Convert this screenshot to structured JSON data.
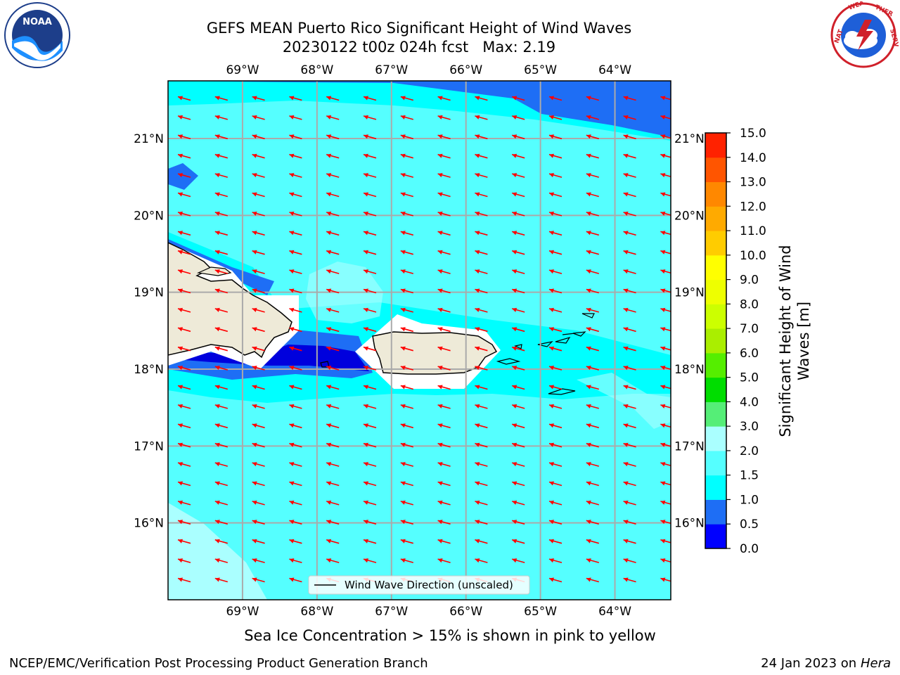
{
  "header": {
    "title_line1": "GEFS MEAN Puerto Rico Significant Height of Wind Waves",
    "title_line2": "20230122 t00z 024h fcst   Max: 2.19"
  },
  "logos": {
    "left": {
      "name": "noaa-logo",
      "text": "NOAA",
      "ring_text": "NATIONAL OCEANIC AND ATMOSPHERIC ADMINISTRATION · U.S. DEPARTMENT OF COMMERCE"
    },
    "right": {
      "name": "nws-logo",
      "ring_text": "NATIONAL WEATHER SERVICE"
    }
  },
  "map": {
    "lon_labels": [
      "69°W",
      "68°W",
      "67°W",
      "66°W",
      "65°W",
      "64°W"
    ],
    "lat_labels": [
      "21°N",
      "20°N",
      "19°N",
      "18°N",
      "17°N",
      "16°N"
    ],
    "lon_range": [
      -70.0,
      -63.25
    ],
    "lat_range": [
      15.0,
      21.75
    ],
    "grid": true,
    "legend_label": "Wind Wave Direction (unscaled)",
    "arrow_color": "#ff0000"
  },
  "colorbar": {
    "label": "Significant Height of Wind Waves [m]",
    "ticks": [
      "0.0",
      "0.5",
      "1.0",
      "1.5",
      "2.0",
      "3.0",
      "4.0",
      "5.0",
      "6.0",
      "7.0",
      "8.0",
      "9.0",
      "10.0",
      "11.0",
      "12.0",
      "13.0",
      "14.0",
      "15.0"
    ],
    "colors": [
      "#0000ff",
      "#1e6ef5",
      "#00ffff",
      "#55ffff",
      "#aaffff",
      "#55ee77",
      "#00dd00",
      "#55ee00",
      "#aaee00",
      "#ccff00",
      "#eeff00",
      "#ffff00",
      "#ffcc00",
      "#ffaa00",
      "#ff8800",
      "#ff5500",
      "#ff2200",
      "#ff0000"
    ]
  },
  "footer": {
    "sea_ice": "Sea Ice Concentration > 15% is shown in pink to yellow",
    "branch": "NCEP/EMC/Verification Post Processing Product Generation Branch",
    "date": "24 Jan 2023 on ",
    "host": "Hera"
  }
}
